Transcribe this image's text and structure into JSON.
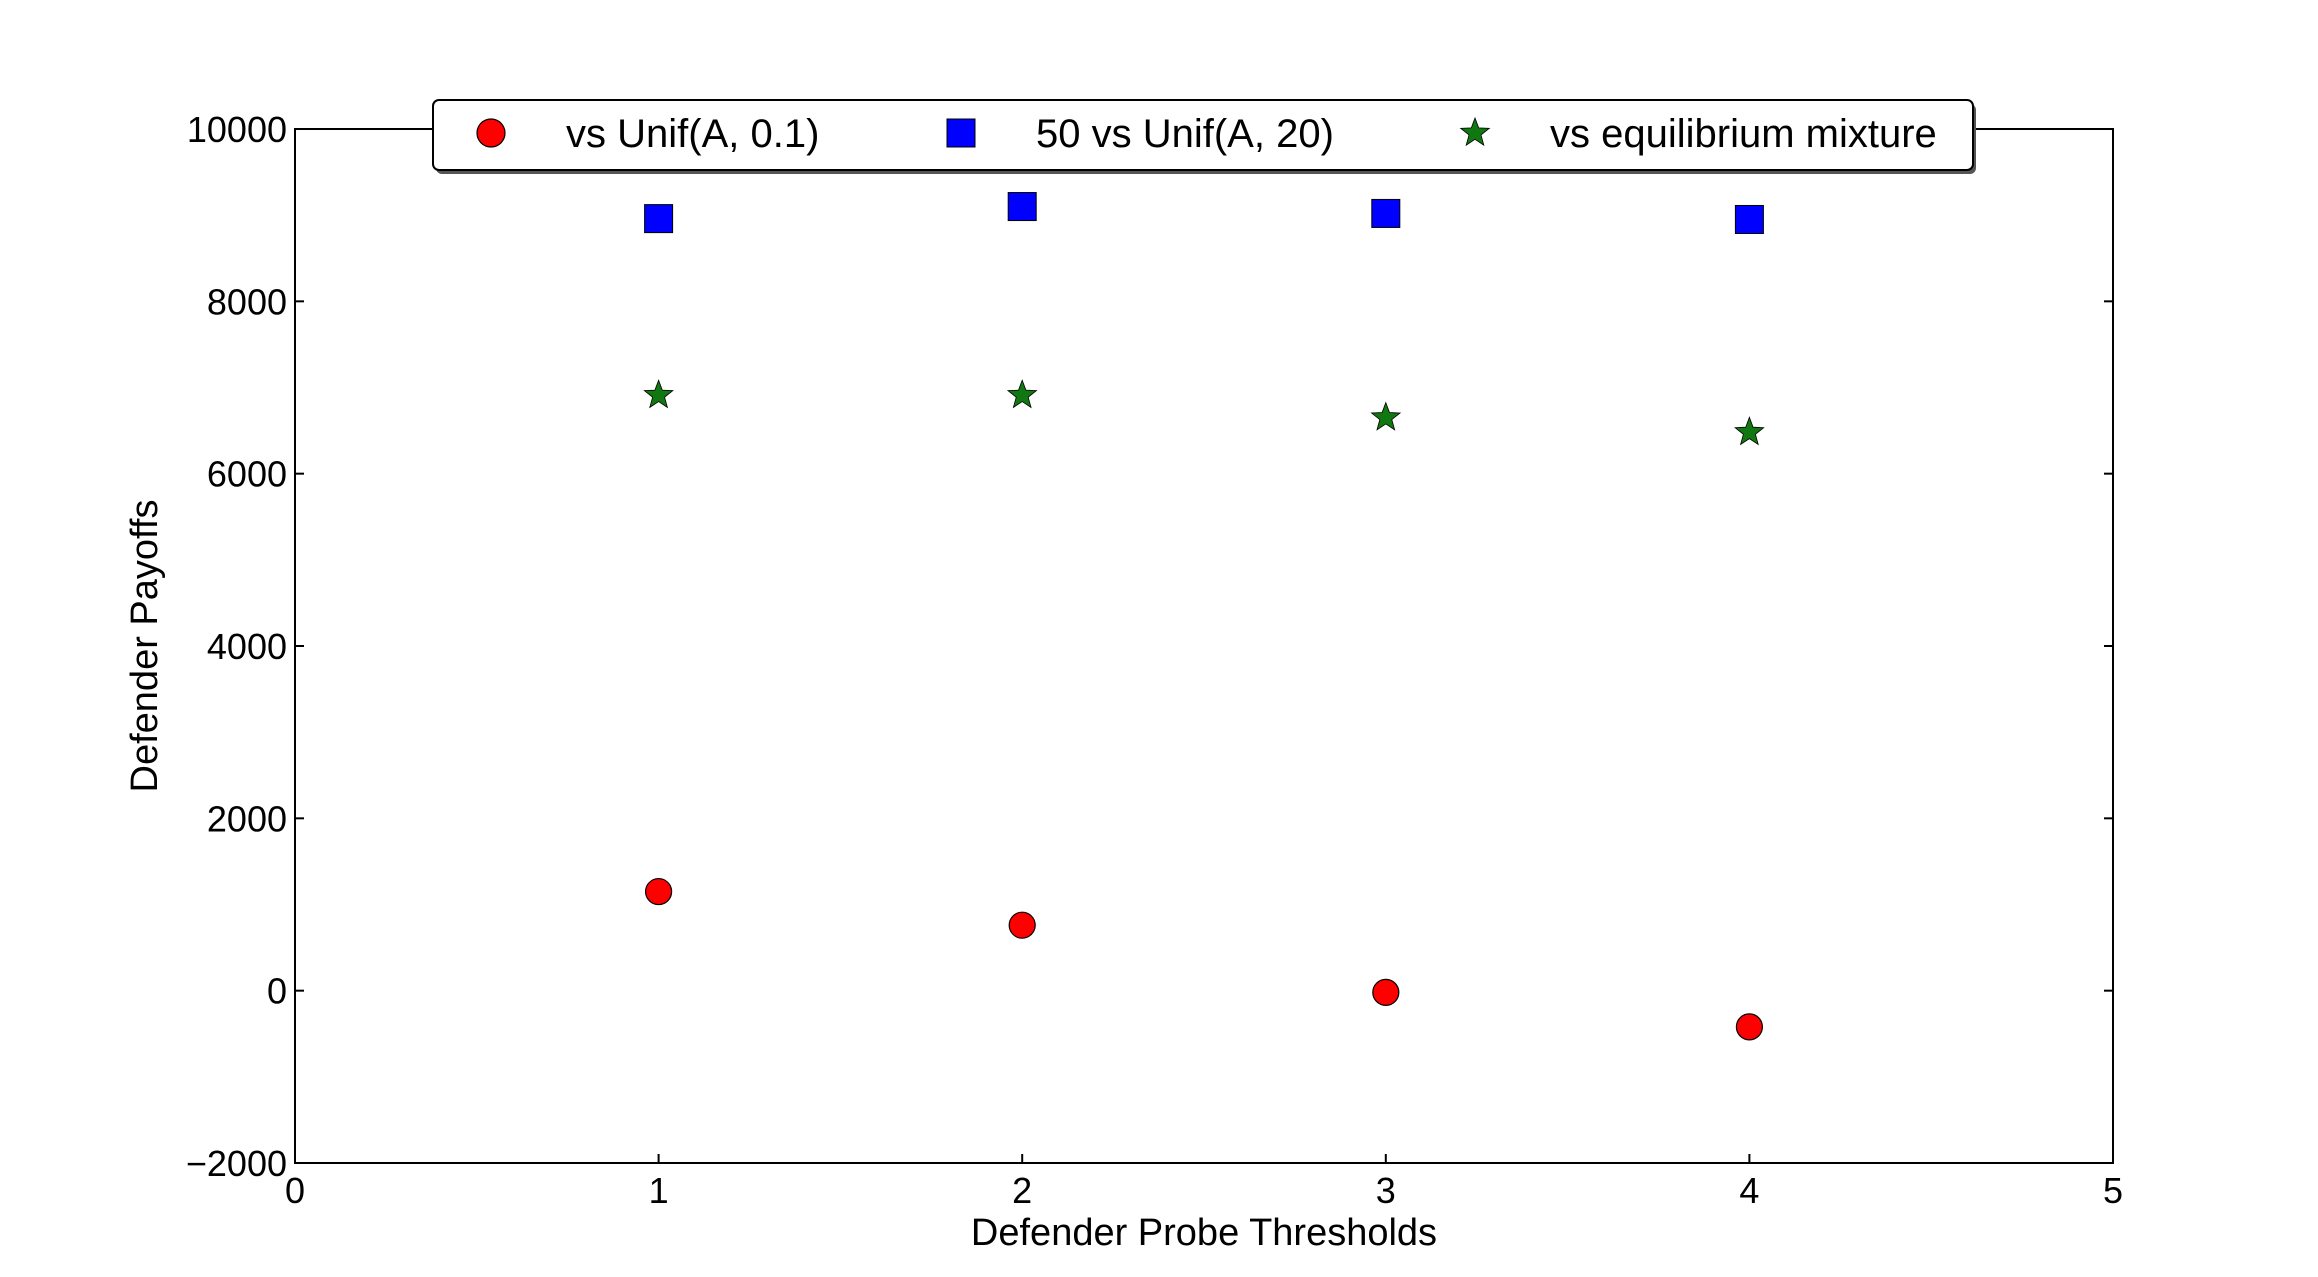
{
  "chart_data": {
    "type": "scatter",
    "title": "",
    "xlabel": "Defender Probe Thresholds",
    "ylabel": "Defender Payoffs",
    "xlim": [
      0,
      5
    ],
    "ylim": [
      -2000,
      10000
    ],
    "xticks": [
      0,
      1,
      2,
      3,
      4,
      5
    ],
    "xtick_labels": [
      "0",
      "1",
      "2",
      "3",
      "4",
      "5"
    ],
    "yticks": [
      -2000,
      0,
      2000,
      4000,
      6000,
      8000,
      10000
    ],
    "ytick_labels": [
      "−2000",
      "0",
      "2000",
      "4000",
      "6000",
      "8000",
      "10000"
    ],
    "grid": false,
    "legend_position": "top-center",
    "series": [
      {
        "name": "vs Unif(A, 0.1)",
        "marker": "circle",
        "color": "#ff0000",
        "x": [
          1,
          2,
          3,
          4
        ],
        "y": [
          1150,
          760,
          -20,
          -420
        ]
      },
      {
        "name": "50 vs Unif(A, 20)",
        "marker": "square",
        "color": "#0000ff",
        "x": [
          1,
          2,
          3,
          4
        ],
        "y": [
          8960,
          9100,
          9020,
          8950
        ]
      },
      {
        "name": "vs equilibrium mixture",
        "marker": "star",
        "color": "#117711",
        "x": [
          1,
          2,
          3,
          4
        ],
        "y": [
          6910,
          6910,
          6650,
          6480
        ]
      }
    ]
  }
}
